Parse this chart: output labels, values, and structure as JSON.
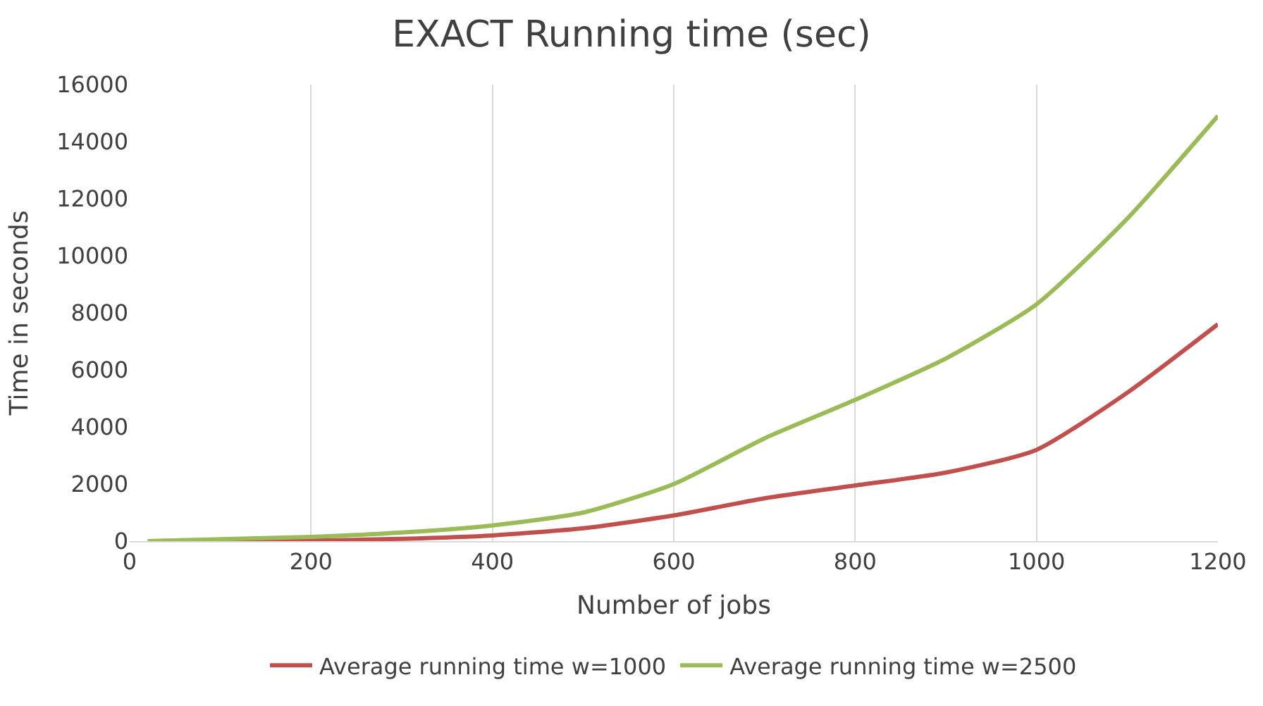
{
  "chart_data": {
    "type": "line",
    "title": "EXACT Running time (sec)",
    "xlabel": "Number of jobs",
    "ylabel": "Time in seconds",
    "x": [
      20,
      200,
      300,
      400,
      500,
      600,
      700,
      800,
      900,
      1000,
      1100,
      1200
    ],
    "series": [
      {
        "name": "Average running time w=1000",
        "color": "#c0504d",
        "values": [
          0,
          20,
          80,
          200,
          450,
          900,
          1500,
          1950,
          2400,
          3200,
          5200,
          7600
        ]
      },
      {
        "name": "Average running time w=2500",
        "color": "#9bbb59",
        "values": [
          0,
          150,
          300,
          550,
          1000,
          2000,
          3600,
          4950,
          6400,
          8300,
          11300,
          14900
        ]
      }
    ],
    "xlim": [
      0,
      1200
    ],
    "xticks": [
      0,
      200,
      400,
      600,
      800,
      1000,
      1200
    ],
    "ylim": [
      0,
      16000
    ],
    "yticks": [
      0,
      2000,
      4000,
      6000,
      8000,
      10000,
      12000,
      14000,
      16000
    ],
    "grid": "x",
    "legend": "bottom",
    "marker": "none",
    "line_style": "solid"
  }
}
